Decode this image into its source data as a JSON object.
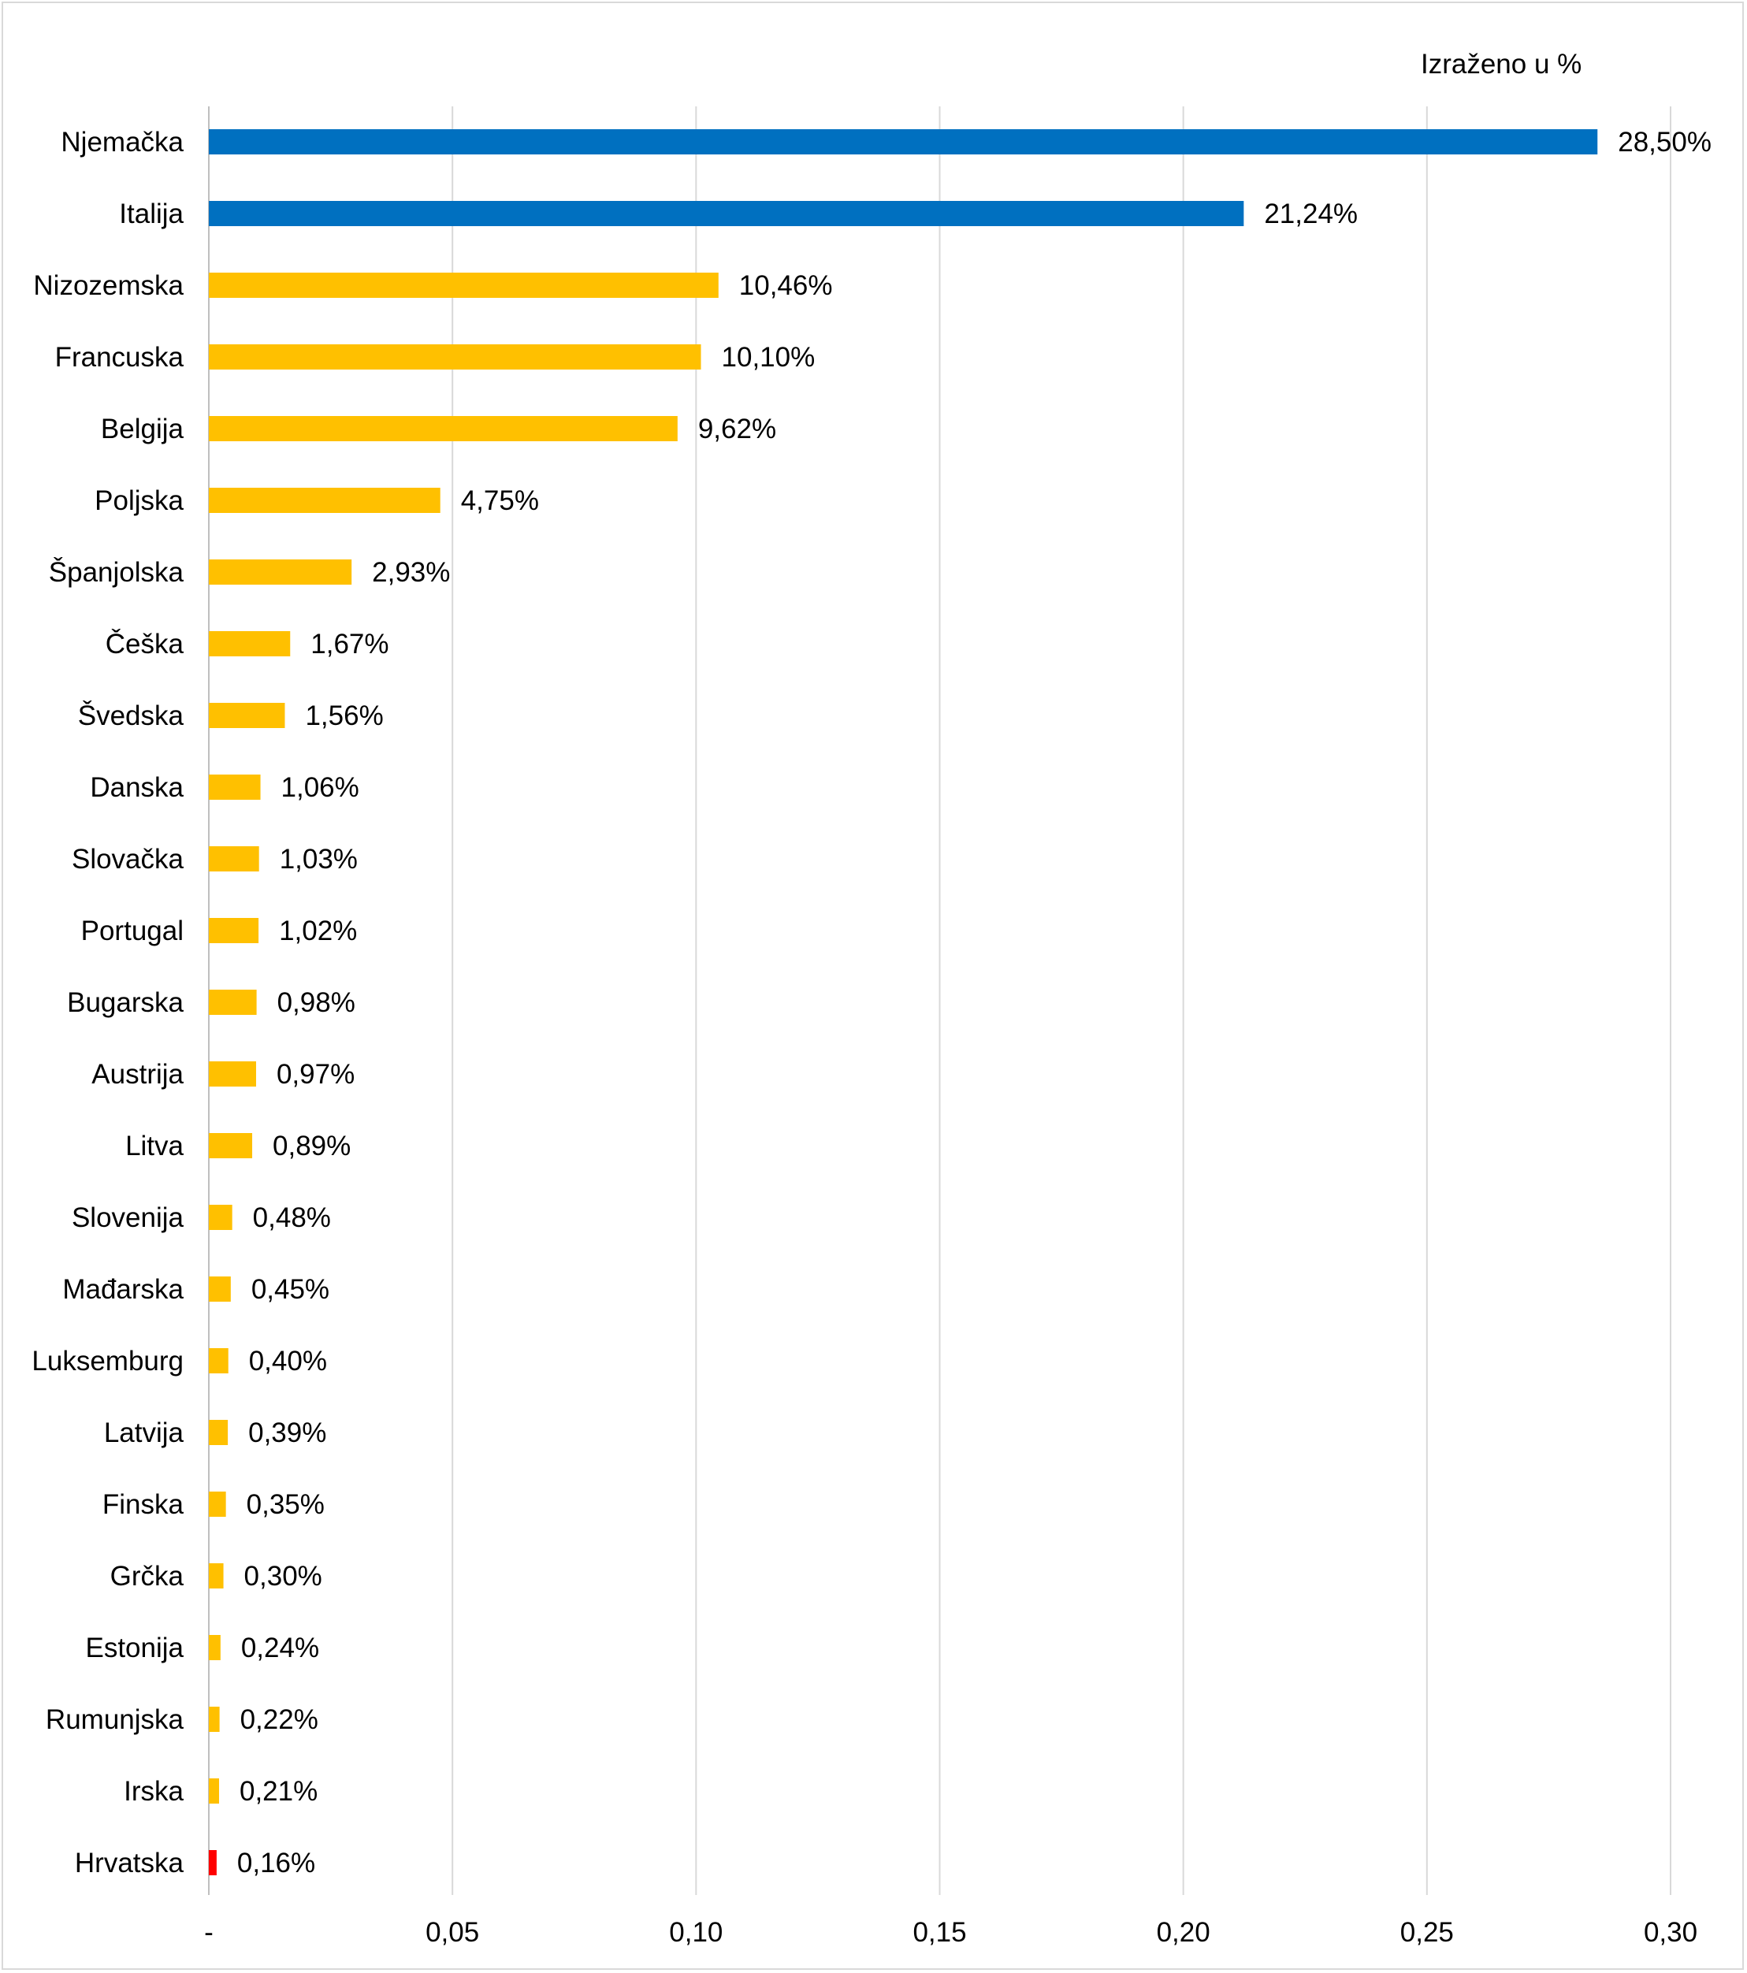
{
  "chart_data": {
    "type": "bar",
    "orientation": "horizontal",
    "unit_note": "Izraženo u %",
    "categories": [
      "Njemačka",
      "Italija",
      "Nizozemska",
      "Francuska",
      "Belgija",
      "Poljska",
      "Španjolska",
      "Češka",
      "Švedska",
      "Danska",
      "Slovačka",
      "Portugal",
      "Bugarska",
      "Austrija",
      "Litva",
      "Slovenija",
      "Mađarska",
      "Luksemburg",
      "Latvija",
      "Finska",
      "Grčka",
      "Estonija",
      "Rumunjska",
      "Irska",
      "Hrvatska"
    ],
    "values": [
      0.285,
      0.2124,
      0.1046,
      0.101,
      0.0962,
      0.0475,
      0.0293,
      0.0167,
      0.0156,
      0.0106,
      0.0103,
      0.0102,
      0.0098,
      0.0097,
      0.0089,
      0.0048,
      0.0045,
      0.004,
      0.0039,
      0.0035,
      0.003,
      0.0024,
      0.0022,
      0.0021,
      0.0016
    ],
    "data_labels": [
      "28,50%",
      "21,24%",
      "10,46%",
      "10,10%",
      "9,62%",
      "4,75%",
      "2,93%",
      "1,67%",
      "1,56%",
      "1,06%",
      "1,03%",
      "1,02%",
      "0,98%",
      "0,97%",
      "0,89%",
      "0,48%",
      "0,45%",
      "0,40%",
      "0,39%",
      "0,35%",
      "0,30%",
      "0,24%",
      "0,22%",
      "0,21%",
      "0,16%"
    ],
    "bar_colors": [
      "#0070C0",
      "#0070C0",
      "#FFC000",
      "#FFC000",
      "#FFC000",
      "#FFC000",
      "#FFC000",
      "#FFC000",
      "#FFC000",
      "#FFC000",
      "#FFC000",
      "#FFC000",
      "#FFC000",
      "#FFC000",
      "#FFC000",
      "#FFC000",
      "#FFC000",
      "#FFC000",
      "#FFC000",
      "#FFC000",
      "#FFC000",
      "#FFC000",
      "#FFC000",
      "#FFC000",
      "#FF0000"
    ],
    "xlim": [
      0,
      0.3
    ],
    "x_ticks": [
      0,
      0.05,
      0.1,
      0.15,
      0.2,
      0.25,
      0.3
    ],
    "x_tick_labels": [
      "-",
      "0,05",
      "0,10",
      "0,15",
      "0,20",
      "0,25",
      "0,30"
    ],
    "grid": "vertical",
    "gridline_color": "#D9D9D9",
    "title": "",
    "xlabel": "",
    "ylabel": ""
  }
}
